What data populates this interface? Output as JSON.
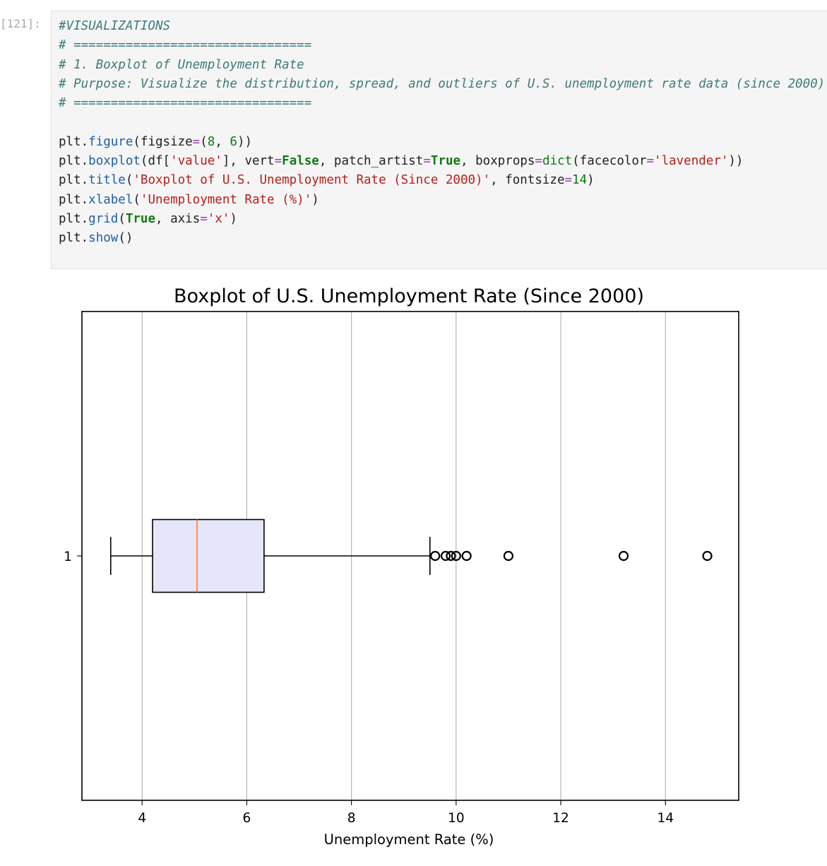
{
  "cell": {
    "prompt": "[121]:",
    "code": [
      {
        "tokens": [
          {
            "t": "#VISUALIZATIONS",
            "c": "comment"
          }
        ]
      },
      {
        "tokens": [
          {
            "t": "# ================================",
            "c": "comment"
          }
        ]
      },
      {
        "tokens": [
          {
            "t": "# 1. Boxplot of Unemployment Rate",
            "c": "comment"
          }
        ]
      },
      {
        "tokens": [
          {
            "t": "# Purpose: Visualize the distribution, spread, and outliers of U.S. unemployment rate data (since 2000)",
            "c": "comment"
          }
        ]
      },
      {
        "tokens": [
          {
            "t": "# ================================",
            "c": "comment"
          }
        ]
      },
      {
        "tokens": [
          {
            "t": "",
            "c": "name"
          }
        ]
      },
      {
        "tokens": [
          {
            "t": "plt.",
            "c": "name"
          },
          {
            "t": "figure",
            "c": "func"
          },
          {
            "t": "(figsize",
            "c": "name"
          },
          {
            "t": "=",
            "c": "op"
          },
          {
            "t": "(",
            "c": "name"
          },
          {
            "t": "8",
            "c": "num"
          },
          {
            "t": ", ",
            "c": "name"
          },
          {
            "t": "6",
            "c": "num"
          },
          {
            "t": "))",
            "c": "name"
          }
        ]
      },
      {
        "tokens": [
          {
            "t": "plt.",
            "c": "name"
          },
          {
            "t": "boxplot",
            "c": "func"
          },
          {
            "t": "(df[",
            "c": "name"
          },
          {
            "t": "'value'",
            "c": "str"
          },
          {
            "t": "], vert",
            "c": "name"
          },
          {
            "t": "=",
            "c": "op"
          },
          {
            "t": "False",
            "c": "kw"
          },
          {
            "t": ", patch_artist",
            "c": "name"
          },
          {
            "t": "=",
            "c": "op"
          },
          {
            "t": "True",
            "c": "kw"
          },
          {
            "t": ", boxprops",
            "c": "name"
          },
          {
            "t": "=",
            "c": "op"
          },
          {
            "t": "dict",
            "c": "num"
          },
          {
            "t": "(facecolor",
            "c": "name"
          },
          {
            "t": "=",
            "c": "op"
          },
          {
            "t": "'lavender'",
            "c": "str"
          },
          {
            "t": "))",
            "c": "name"
          }
        ]
      },
      {
        "tokens": [
          {
            "t": "plt.",
            "c": "name"
          },
          {
            "t": "title",
            "c": "func"
          },
          {
            "t": "(",
            "c": "name"
          },
          {
            "t": "'Boxplot of U.S. Unemployment Rate (Since 2000)'",
            "c": "str"
          },
          {
            "t": ", fontsize",
            "c": "name"
          },
          {
            "t": "=",
            "c": "op"
          },
          {
            "t": "14",
            "c": "num"
          },
          {
            "t": ")",
            "c": "name"
          }
        ]
      },
      {
        "tokens": [
          {
            "t": "plt.",
            "c": "name"
          },
          {
            "t": "xlabel",
            "c": "func"
          },
          {
            "t": "(",
            "c": "name"
          },
          {
            "t": "'Unemployment Rate (%)'",
            "c": "str"
          },
          {
            "t": ")",
            "c": "name"
          }
        ]
      },
      {
        "tokens": [
          {
            "t": "plt.",
            "c": "name"
          },
          {
            "t": "grid",
            "c": "func"
          },
          {
            "t": "(",
            "c": "name"
          },
          {
            "t": "True",
            "c": "kw"
          },
          {
            "t": ", axis",
            "c": "name"
          },
          {
            "t": "=",
            "c": "op"
          },
          {
            "t": "'x'",
            "c": "str"
          },
          {
            "t": ")",
            "c": "name"
          }
        ]
      },
      {
        "tokens": [
          {
            "t": "plt.",
            "c": "name"
          },
          {
            "t": "show",
            "c": "func"
          },
          {
            "t": "()",
            "c": "name"
          }
        ]
      }
    ]
  },
  "colors": {
    "comment": "#3d7a7a",
    "func": "#1d5fa8",
    "number": "#117a11",
    "string": "#b5201a",
    "box_fill": "#e6e6fa",
    "median": "#ff7f0e",
    "grid": "#b0b0b0"
  },
  "chart_data": {
    "type": "boxplot",
    "orientation": "horizontal",
    "title": "Boxplot of U.S. Unemployment Rate (Since 2000)",
    "xlabel": "Unemployment Rate (%)",
    "ylabel": "",
    "xlim": [
      2.85,
      15.4
    ],
    "xticks": [
      4,
      6,
      8,
      10,
      12,
      14
    ],
    "yticks": [
      {
        "label": "1",
        "value": 1
      }
    ],
    "grid": "x",
    "series": [
      {
        "position": 1,
        "whisker_low": 3.4,
        "q1": 4.2,
        "median": 5.05,
        "q3": 6.33,
        "whisker_high": 9.5,
        "outliers": [
          9.6,
          9.8,
          9.9,
          10.0,
          10.2,
          11.0,
          13.2,
          14.8
        ]
      }
    ]
  }
}
